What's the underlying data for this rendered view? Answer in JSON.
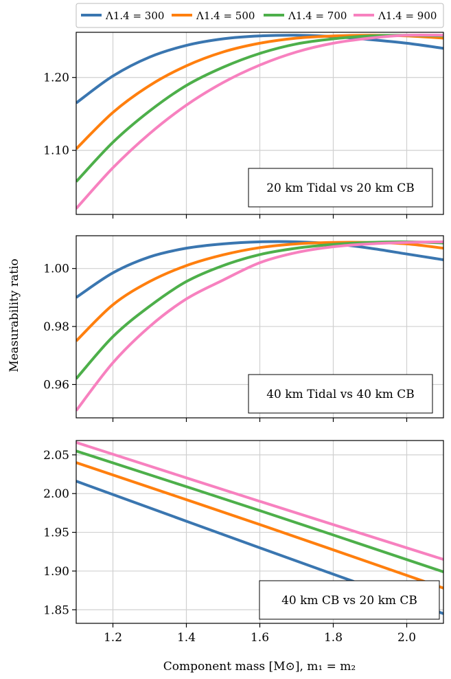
{
  "figure": {
    "xlabel": "Component mass [M⊙], m₁ = m₂",
    "ylabel": "Measurability ratio"
  },
  "legend": {
    "placement": "top",
    "entries": [
      {
        "label": "Λ1.4 = 300",
        "color": "#3a76b0"
      },
      {
        "label": "Λ1.4 = 500",
        "color": "#ff7f0e"
      },
      {
        "label": "Λ1.4 = 700",
        "color": "#4daf4a"
      },
      {
        "label": "Λ1.4 = 900",
        "color": "#f781bf"
      }
    ]
  },
  "chart_data": [
    {
      "type": "line",
      "annotation": "20 km Tidal vs 20 km CB",
      "xlim": [
        1.1,
        2.1
      ],
      "ylim": [
        1.012,
        1.262
      ],
      "xticks": [
        1.2,
        1.4,
        1.6,
        1.8,
        2.0
      ],
      "yticks": [
        1.1,
        1.2
      ],
      "ytick_labels": [
        "1.10",
        "1.20"
      ],
      "xtick_labels_shown": false,
      "grid": true,
      "series": [
        {
          "name": "Λ1.4 = 300",
          "color": "#3a76b0",
          "x": [
            1.1,
            1.2,
            1.3,
            1.4,
            1.5,
            1.6,
            1.7,
            1.8,
            1.9,
            2.0,
            2.1
          ],
          "y": [
            1.165,
            1.202,
            1.228,
            1.244,
            1.253,
            1.257,
            1.258,
            1.256,
            1.252,
            1.247,
            1.24
          ]
        },
        {
          "name": "Λ1.4 = 500",
          "color": "#ff7f0e",
          "x": [
            1.1,
            1.2,
            1.3,
            1.4,
            1.5,
            1.6,
            1.7,
            1.8,
            1.9,
            2.0,
            2.1
          ],
          "y": [
            1.102,
            1.152,
            1.189,
            1.216,
            1.235,
            1.247,
            1.254,
            1.257,
            1.258,
            1.257,
            1.254
          ]
        },
        {
          "name": "Λ1.4 = 700",
          "color": "#4daf4a",
          "x": [
            1.1,
            1.2,
            1.3,
            1.4,
            1.5,
            1.6,
            1.7,
            1.8,
            1.9,
            2.0,
            2.1
          ],
          "y": [
            1.057,
            1.111,
            1.154,
            1.189,
            1.214,
            1.233,
            1.246,
            1.253,
            1.257,
            1.258,
            1.257
          ]
        },
        {
          "name": "Λ1.4 = 900",
          "color": "#f781bf",
          "x": [
            1.1,
            1.2,
            1.3,
            1.4,
            1.5,
            1.6,
            1.7,
            1.8,
            1.9,
            2.0,
            2.1
          ],
          "y": [
            1.02,
            1.076,
            1.123,
            1.162,
            1.193,
            1.217,
            1.235,
            1.247,
            1.254,
            1.258,
            1.258
          ]
        }
      ]
    },
    {
      "type": "line",
      "annotation": "40 km Tidal vs 40 km CB",
      "xlim": [
        1.1,
        2.1
      ],
      "ylim": [
        0.9485,
        1.0113
      ],
      "xticks": [
        1.2,
        1.4,
        1.6,
        1.8,
        2.0
      ],
      "yticks": [
        0.96,
        0.98,
        1.0
      ],
      "ytick_labels": [
        "0.96",
        "0.98",
        "1.00"
      ],
      "xtick_labels_shown": false,
      "grid": true,
      "series": [
        {
          "name": "Λ1.4 = 300",
          "color": "#3a76b0",
          "x": [
            1.1,
            1.2,
            1.3,
            1.4,
            1.5,
            1.6,
            1.7,
            1.8,
            1.9,
            2.0,
            2.1
          ],
          "y": [
            0.99,
            0.9985,
            1.004,
            1.007,
            1.0085,
            1.0092,
            1.0092,
            1.0085,
            1.007,
            1.005,
            1.003
          ]
        },
        {
          "name": "Λ1.4 = 500",
          "color": "#ff7f0e",
          "x": [
            1.1,
            1.2,
            1.3,
            1.4,
            1.5,
            1.6,
            1.7,
            1.8,
            1.9,
            2.0,
            2.1
          ],
          "y": [
            0.975,
            0.9875,
            0.9955,
            1.001,
            1.0047,
            1.0072,
            1.0085,
            1.009,
            1.009,
            1.0085,
            1.007
          ]
        },
        {
          "name": "Λ1.4 = 700",
          "color": "#4daf4a",
          "x": [
            1.1,
            1.2,
            1.3,
            1.4,
            1.5,
            1.6,
            1.7,
            1.8,
            1.9,
            2.0,
            2.1
          ],
          "y": [
            0.962,
            0.9765,
            0.987,
            0.9955,
            1.001,
            1.0048,
            1.007,
            1.0083,
            1.009,
            1.0092,
            1.0088
          ]
        },
        {
          "name": "Λ1.4 = 900",
          "color": "#f781bf",
          "x": [
            1.1,
            1.2,
            1.3,
            1.4,
            1.5,
            1.6,
            1.7,
            1.8,
            1.9,
            2.0,
            2.1
          ],
          "y": [
            0.951,
            0.9675,
            0.98,
            0.9895,
            0.996,
            1.002,
            1.0055,
            1.0075,
            1.0085,
            1.009,
            1.0092
          ]
        }
      ]
    },
    {
      "type": "line",
      "annotation": "40 km CB vs 20 km CB",
      "xlim": [
        1.1,
        2.1
      ],
      "ylim": [
        1.8325,
        2.0685
      ],
      "xticks": [
        1.2,
        1.4,
        1.6,
        1.8,
        2.0
      ],
      "xtick_labels": [
        "1.2",
        "1.4",
        "1.6",
        "1.8",
        "2.0"
      ],
      "yticks": [
        1.85,
        1.9,
        1.95,
        2.0,
        2.05
      ],
      "ytick_labels": [
        "1.85",
        "1.90",
        "1.95",
        "2.00",
        "2.05"
      ],
      "xtick_labels_shown": true,
      "grid": true,
      "series": [
        {
          "name": "Λ1.4 = 300",
          "color": "#3a76b0",
          "x": [
            1.1,
            1.6,
            2.1
          ],
          "y": [
            2.016,
            1.93,
            1.845
          ]
        },
        {
          "name": "Λ1.4 = 500",
          "color": "#ff7f0e",
          "x": [
            1.1,
            1.6,
            2.1
          ],
          "y": [
            2.04,
            1.96,
            1.878
          ]
        },
        {
          "name": "Λ1.4 = 700",
          "color": "#4daf4a",
          "x": [
            1.1,
            1.6,
            2.1
          ],
          "y": [
            2.055,
            1.978,
            1.899
          ]
        },
        {
          "name": "Λ1.4 = 900",
          "color": "#f781bf",
          "x": [
            1.1,
            1.6,
            2.1
          ],
          "y": [
            2.066,
            1.99,
            1.915
          ]
        }
      ]
    }
  ]
}
